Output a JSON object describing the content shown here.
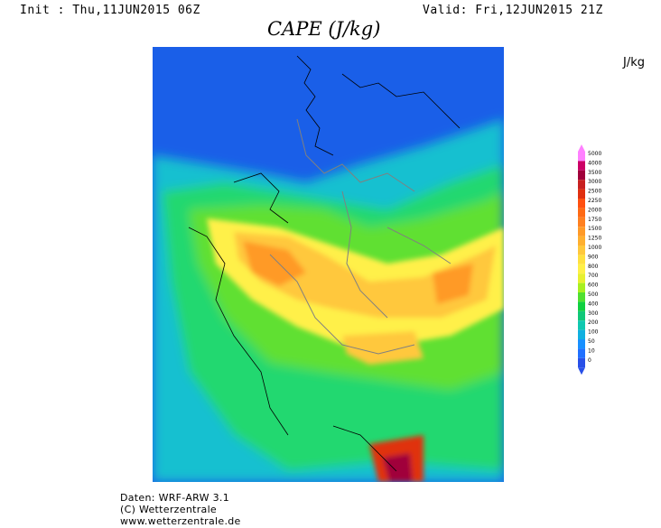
{
  "header": {
    "init": "Init : Thu,11JUN2015 06Z",
    "valid": "Valid: Fri,12JUN2015 21Z",
    "title": "CAPE (J/kg)",
    "unit": "J/kg"
  },
  "legend": {
    "labels": [
      "5000",
      "4000",
      "3500",
      "3000",
      "2500",
      "2250",
      "2000",
      "1750",
      "1500",
      "1250",
      "1000",
      "900",
      "800",
      "700",
      "600",
      "500",
      "400",
      "300",
      "200",
      "100",
      "50",
      "10",
      "0"
    ],
    "colors": [
      "#ff80ff",
      "#cc0066",
      "#a0003a",
      "#c82020",
      "#e03010",
      "#ff5010",
      "#ff6a14",
      "#ff8020",
      "#ff9a28",
      "#ffb030",
      "#ffc83c",
      "#ffe040",
      "#fff048",
      "#e8f030",
      "#a8f020",
      "#50e030",
      "#10d040",
      "#10c878",
      "#10c8b0",
      "#10b0e0",
      "#1890ff",
      "#2070ff",
      "#2850e8"
    ]
  },
  "map": {
    "ocean_color": "#1a5fe8",
    "region": "Central Europe",
    "feature": "arrow-down-icon"
  },
  "credits": {
    "line1": "Daten: WRF-ARW 3.1",
    "line2": "(C) Wetterzentrale",
    "line3": "www.wetterzentrale.de"
  }
}
